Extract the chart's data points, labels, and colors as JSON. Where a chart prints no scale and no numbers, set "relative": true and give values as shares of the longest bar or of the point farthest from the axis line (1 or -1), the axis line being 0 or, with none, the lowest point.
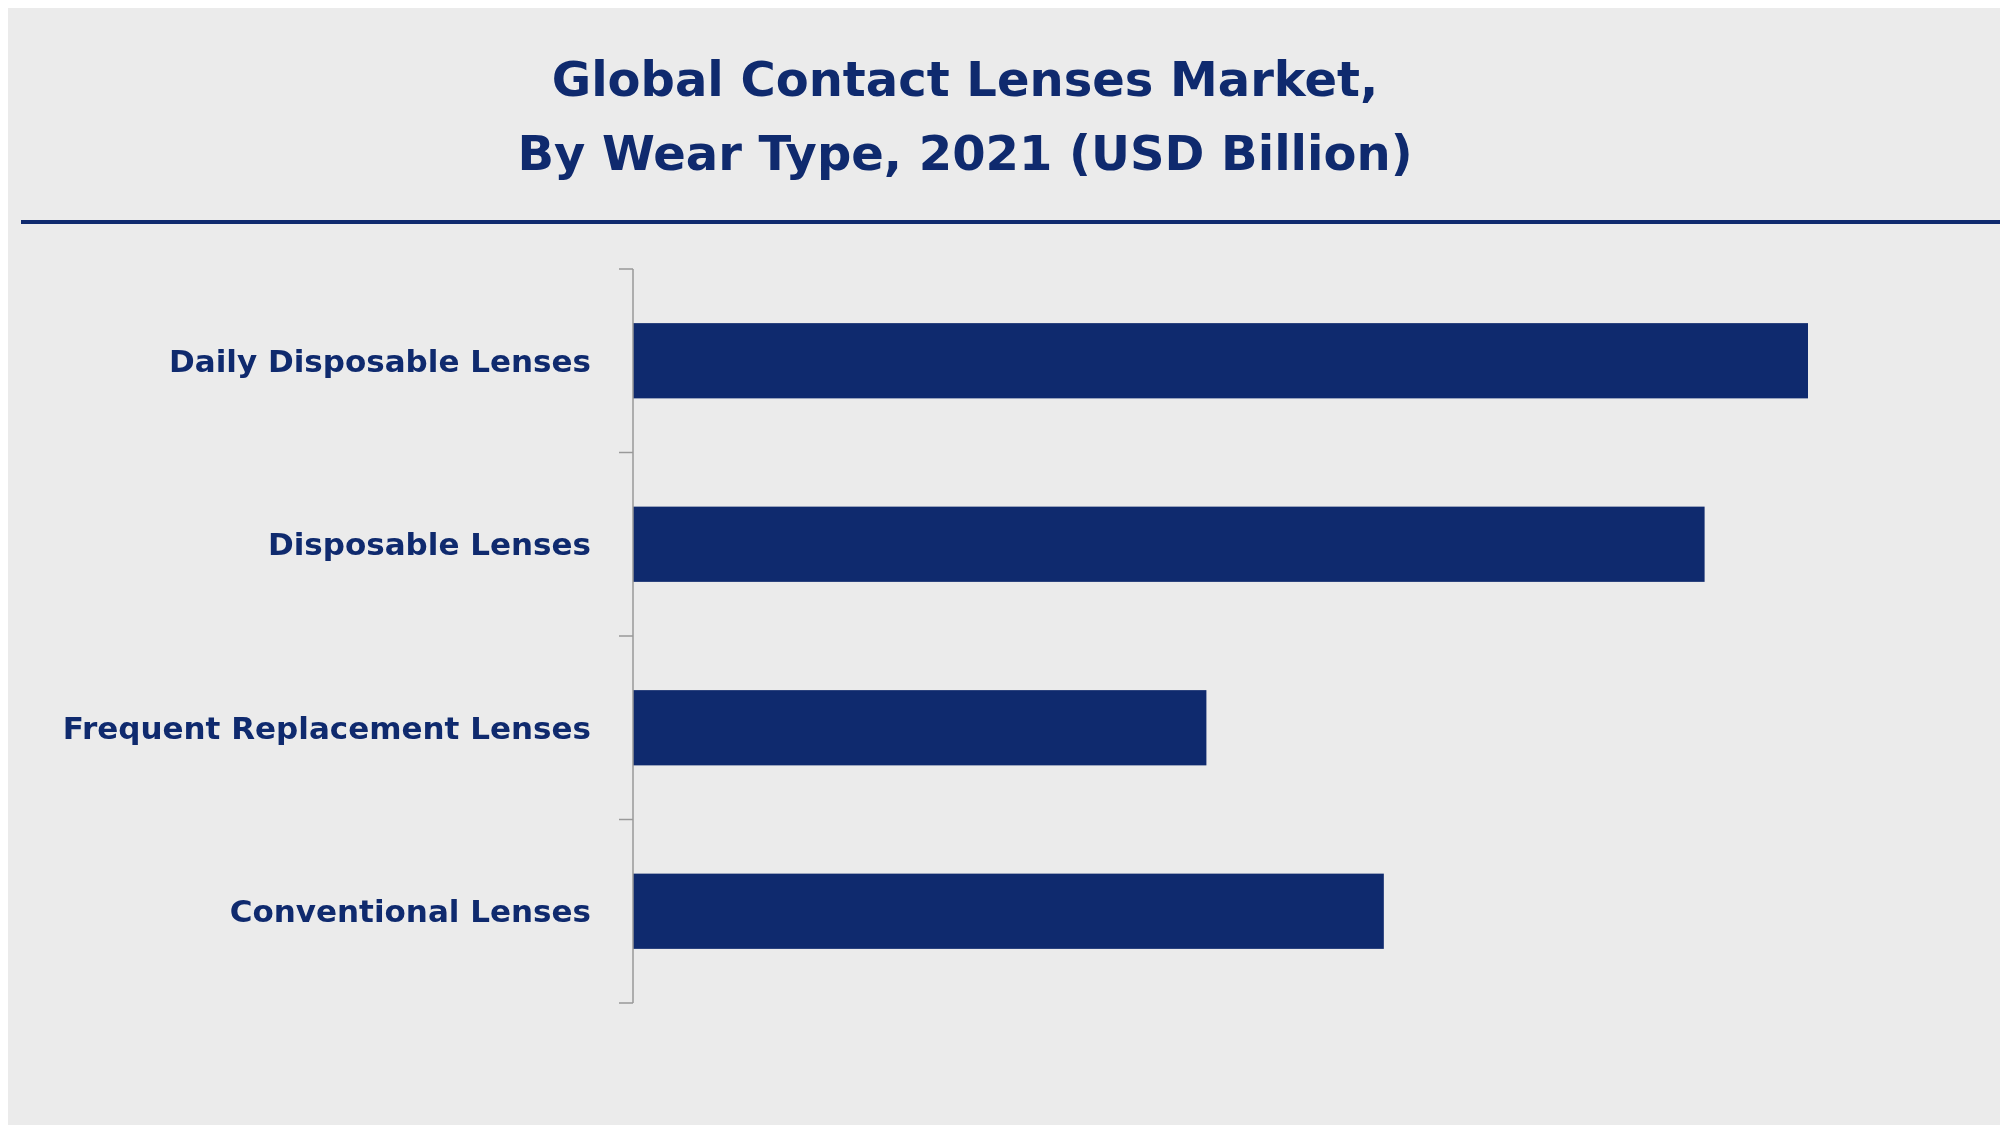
{
  "chart_data": {
    "type": "bar",
    "orientation": "horizontal",
    "relative": true,
    "title": "Global Contact Lenses Market,\nBy Wear Type, 2021 (USD Billion)",
    "categories": [
      "Daily Disposable Lenses",
      "Disposable Lenses",
      "Frequent Replacement Lenses",
      "Conventional Lenses"
    ],
    "values": [
      1,
      0.912,
      0.488,
      0.639
    ],
    "color": "#0f2a6e"
  }
}
